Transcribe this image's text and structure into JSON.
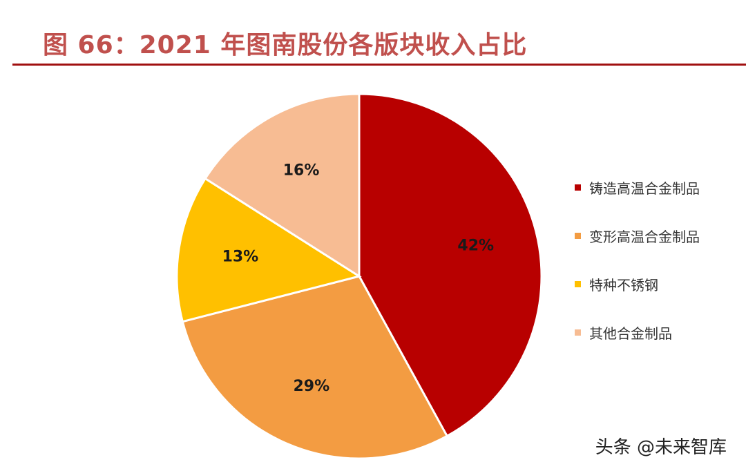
{
  "header": {
    "title": "图 66：2021 年图南股份各版块收入占比"
  },
  "chart_data": {
    "type": "pie",
    "title": "图 66：2021 年图南股份各版块收入占比",
    "categories": [
      "铸造高温合金制品",
      "变形高温合金制品",
      "特种不锈钢",
      "其他合金制品"
    ],
    "values": [
      42,
      29,
      13,
      16
    ],
    "labels": [
      "42%",
      "29%",
      "13%",
      "16%"
    ],
    "colors": [
      "#b80000",
      "#f39c42",
      "#ffc000",
      "#f7bc93"
    ],
    "start": "12 o'clock",
    "direction": "clockwise",
    "legend_position": "right"
  },
  "legend": {
    "items": [
      {
        "label": "铸造高温合金制品",
        "color": "#b80000"
      },
      {
        "label": "变形高温合金制品",
        "color": "#f39c42"
      },
      {
        "label": "特种不锈钢",
        "color": "#ffc000"
      },
      {
        "label": "其他合金制品",
        "color": "#f7bc93"
      }
    ]
  },
  "watermark": {
    "text": "头条 @未来智库"
  }
}
